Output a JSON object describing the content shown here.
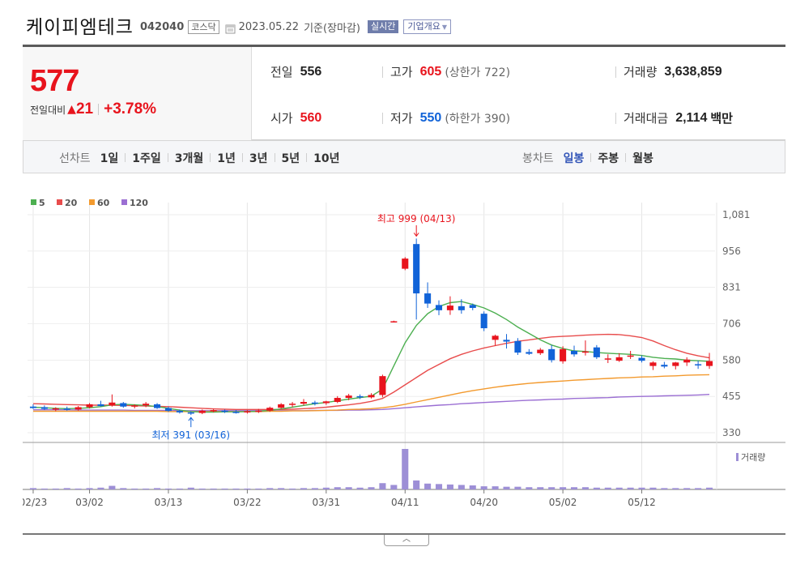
{
  "header": {
    "company": "케이피엠테크",
    "code": "042040",
    "market": "코스닥",
    "date": "2023.05.22",
    "basis": "기준(장마감)",
    "realtime": "실시간",
    "company_info": "기업개요"
  },
  "quote": {
    "price": "577",
    "change_label": "전일대비",
    "change_amount": "21",
    "change_percent": "+3.78%",
    "prev_close_label": "전일",
    "prev_close": "556",
    "open_label": "시가",
    "open": "560",
    "high_label": "고가",
    "high": "605",
    "upper_limit": "(상한가 722)",
    "low_label": "저가",
    "low": "550",
    "lower_limit": "(하한가 390)",
    "volume_label": "거래량",
    "volume": "3,638,859",
    "amount_label": "거래대금",
    "amount": "2,114",
    "amount_unit": "백만",
    "up_color": "#e8141d",
    "down_color": "#1163d8"
  },
  "period_tabs": {
    "title": "선차트",
    "items": [
      "1일",
      "1주일",
      "3개월",
      "1년",
      "3년",
      "5년",
      "10년"
    ]
  },
  "candle_tabs": {
    "title": "봉차트",
    "items": [
      "일봉",
      "주봉",
      "월봉"
    ],
    "active": "일봉"
  },
  "chart_data": {
    "type": "candlestick",
    "legend": [
      {
        "name": "5",
        "color": "#4caf50"
      },
      {
        "name": "20",
        "color": "#e84c4c"
      },
      {
        "name": "60",
        "color": "#f39a2e"
      },
      {
        "name": "120",
        "color": "#9b6fd3"
      }
    ],
    "volume_legend": "거래량",
    "y_ticks": [
      "1,081",
      "956",
      "831",
      "706",
      "580",
      "455",
      "330"
    ],
    "y_tick_values": [
      1081,
      956,
      831,
      706,
      580,
      455,
      330
    ],
    "ylim": [
      330,
      1081
    ],
    "x_ticks": [
      {
        "label": "02/23",
        "index": 0
      },
      {
        "label": "03/02",
        "index": 5
      },
      {
        "label": "03/13",
        "index": 12
      },
      {
        "label": "03/22",
        "index": 19
      },
      {
        "label": "03/31",
        "index": 26
      },
      {
        "label": "04/11",
        "index": 33
      },
      {
        "label": "04/20",
        "index": 40
      },
      {
        "label": "05/02",
        "index": 47
      },
      {
        "label": "05/12",
        "index": 54
      }
    ],
    "max_annotation": "최고 999 (04/13)",
    "max_index": 34,
    "min_annotation": "최저 391 (03/16)",
    "min_index": 14,
    "candles": [
      {
        "o": 420,
        "h": 428,
        "l": 412,
        "c": 415
      },
      {
        "o": 418,
        "h": 424,
        "l": 408,
        "c": 412
      },
      {
        "o": 410,
        "h": 418,
        "l": 404,
        "c": 414
      },
      {
        "o": 413,
        "h": 420,
        "l": 406,
        "c": 410
      },
      {
        "o": 410,
        "h": 422,
        "l": 406,
        "c": 418
      },
      {
        "o": 418,
        "h": 432,
        "l": 414,
        "c": 428
      },
      {
        "o": 428,
        "h": 440,
        "l": 420,
        "c": 422
      },
      {
        "o": 424,
        "h": 462,
        "l": 420,
        "c": 434
      },
      {
        "o": 432,
        "h": 436,
        "l": 416,
        "c": 420
      },
      {
        "o": 420,
        "h": 428,
        "l": 414,
        "c": 424
      },
      {
        "o": 424,
        "h": 436,
        "l": 418,
        "c": 430
      },
      {
        "o": 428,
        "h": 432,
        "l": 412,
        "c": 415
      },
      {
        "o": 415,
        "h": 420,
        "l": 402,
        "c": 405
      },
      {
        "o": 405,
        "h": 410,
        "l": 396,
        "c": 400
      },
      {
        "o": 400,
        "h": 404,
        "l": 391,
        "c": 396
      },
      {
        "o": 398,
        "h": 410,
        "l": 394,
        "c": 406
      },
      {
        "o": 406,
        "h": 412,
        "l": 400,
        "c": 408
      },
      {
        "o": 406,
        "h": 410,
        "l": 398,
        "c": 402
      },
      {
        "o": 402,
        "h": 408,
        "l": 396,
        "c": 400
      },
      {
        "o": 402,
        "h": 408,
        "l": 396,
        "c": 404
      },
      {
        "o": 404,
        "h": 412,
        "l": 398,
        "c": 406
      },
      {
        "o": 406,
        "h": 420,
        "l": 402,
        "c": 416
      },
      {
        "o": 416,
        "h": 432,
        "l": 412,
        "c": 428
      },
      {
        "o": 428,
        "h": 436,
        "l": 418,
        "c": 430
      },
      {
        "o": 430,
        "h": 446,
        "l": 424,
        "c": 436
      },
      {
        "o": 434,
        "h": 440,
        "l": 424,
        "c": 430
      },
      {
        "o": 432,
        "h": 440,
        "l": 426,
        "c": 438
      },
      {
        "o": 436,
        "h": 456,
        "l": 432,
        "c": 450
      },
      {
        "o": 450,
        "h": 464,
        "l": 442,
        "c": 458
      },
      {
        "o": 456,
        "h": 462,
        "l": 446,
        "c": 452
      },
      {
        "o": 452,
        "h": 466,
        "l": 448,
        "c": 460
      },
      {
        "o": 460,
        "h": 530,
        "l": 452,
        "c": 525
      },
      {
        "o": 712,
        "h": 716,
        "l": 710,
        "c": 714
      },
      {
        "o": 895,
        "h": 935,
        "l": 890,
        "c": 930
      },
      {
        "o": 980,
        "h": 999,
        "l": 720,
        "c": 810
      },
      {
        "o": 810,
        "h": 848,
        "l": 760,
        "c": 775
      },
      {
        "o": 770,
        "h": 786,
        "l": 735,
        "c": 752
      },
      {
        "o": 752,
        "h": 800,
        "l": 736,
        "c": 768
      },
      {
        "o": 766,
        "h": 790,
        "l": 740,
        "c": 752
      },
      {
        "o": 770,
        "h": 775,
        "l": 752,
        "c": 760
      },
      {
        "o": 740,
        "h": 748,
        "l": 680,
        "c": 690
      },
      {
        "o": 650,
        "h": 668,
        "l": 630,
        "c": 664
      },
      {
        "o": 650,
        "h": 670,
        "l": 620,
        "c": 644
      },
      {
        "o": 646,
        "h": 656,
        "l": 598,
        "c": 606
      },
      {
        "o": 608,
        "h": 618,
        "l": 598,
        "c": 602
      },
      {
        "o": 604,
        "h": 622,
        "l": 598,
        "c": 616
      },
      {
        "o": 618,
        "h": 632,
        "l": 572,
        "c": 580
      },
      {
        "o": 576,
        "h": 628,
        "l": 568,
        "c": 618
      },
      {
        "o": 612,
        "h": 630,
        "l": 592,
        "c": 600
      },
      {
        "o": 608,
        "h": 648,
        "l": 596,
        "c": 610
      },
      {
        "o": 624,
        "h": 632,
        "l": 584,
        "c": 590
      },
      {
        "o": 586,
        "h": 600,
        "l": 570,
        "c": 586
      },
      {
        "o": 578,
        "h": 604,
        "l": 574,
        "c": 590
      },
      {
        "o": 592,
        "h": 612,
        "l": 584,
        "c": 596
      },
      {
        "o": 588,
        "h": 596,
        "l": 572,
        "c": 578
      },
      {
        "o": 560,
        "h": 576,
        "l": 546,
        "c": 572
      },
      {
        "o": 564,
        "h": 574,
        "l": 552,
        "c": 558
      },
      {
        "o": 560,
        "h": 574,
        "l": 548,
        "c": 572
      },
      {
        "o": 572,
        "h": 590,
        "l": 560,
        "c": 582
      },
      {
        "o": 566,
        "h": 578,
        "l": 550,
        "c": 562
      },
      {
        "o": 560,
        "h": 605,
        "l": 550,
        "c": 577
      }
    ],
    "volumes": [
      3,
      2,
      2,
      3,
      2,
      3,
      4,
      8,
      3,
      2,
      2,
      3,
      2,
      2,
      4,
      2,
      2,
      2,
      2,
      2,
      2,
      3,
      3,
      2,
      3,
      3,
      4,
      5,
      5,
      4,
      5,
      14,
      10,
      90,
      20,
      13,
      12,
      11,
      10,
      9,
      7,
      7,
      6,
      6,
      5,
      5,
      5,
      5,
      5,
      5,
      4,
      4,
      4,
      4,
      4,
      4,
      3,
      3,
      3,
      3,
      4
    ],
    "vol_max": 90,
    "ma5": [
      418,
      416,
      414,
      413,
      414,
      416,
      420,
      426,
      428,
      426,
      424,
      420,
      414,
      408,
      403,
      401,
      401,
      402,
      402,
      403,
      404,
      407,
      412,
      418,
      424,
      430,
      434,
      440,
      446,
      451,
      456,
      480,
      560,
      640,
      700,
      740,
      765,
      778,
      782,
      772,
      760,
      742,
      720,
      694,
      672,
      650,
      632,
      620,
      612,
      610,
      606,
      604,
      602,
      600,
      596,
      590,
      586,
      584,
      580,
      578,
      576
    ],
    "ma20": [
      430,
      429,
      428,
      427,
      426,
      425,
      425,
      425,
      424,
      423,
      422,
      421,
      420,
      418,
      416,
      414,
      412,
      411,
      410,
      410,
      410,
      410,
      410,
      411,
      413,
      415,
      418,
      422,
      426,
      431,
      438,
      448,
      470,
      495,
      520,
      545,
      565,
      585,
      600,
      612,
      622,
      630,
      638,
      645,
      650,
      655,
      660,
      662,
      664,
      666,
      668,
      669,
      668,
      664,
      658,
      646,
      630,
      616,
      604,
      595,
      588
    ],
    "ma60": [
      404,
      404,
      404,
      404,
      404,
      404,
      404,
      404,
      404,
      404,
      404,
      404,
      403,
      403,
      403,
      403,
      403,
      403,
      403,
      403,
      403,
      404,
      404,
      405,
      405,
      406,
      407,
      408,
      410,
      411,
      413,
      416,
      421,
      428,
      436,
      444,
      452,
      460,
      468,
      475,
      481,
      487,
      492,
      496,
      500,
      503,
      506,
      508,
      511,
      513,
      515,
      517,
      519,
      520,
      522,
      523,
      525,
      526,
      528,
      529,
      530
    ],
    "ma120": [
      409,
      409,
      409,
      409,
      408,
      408,
      408,
      408,
      408,
      407,
      407,
      407,
      407,
      406,
      406,
      406,
      406,
      406,
      406,
      406,
      406,
      406,
      406,
      406,
      406,
      407,
      407,
      407,
      408,
      408,
      409,
      410,
      413,
      416,
      419,
      422,
      425,
      427,
      430,
      432,
      434,
      436,
      438,
      440,
      442,
      443,
      445,
      446,
      448,
      449,
      450,
      451,
      453,
      454,
      455,
      456,
      457,
      458,
      459,
      460,
      462
    ]
  }
}
